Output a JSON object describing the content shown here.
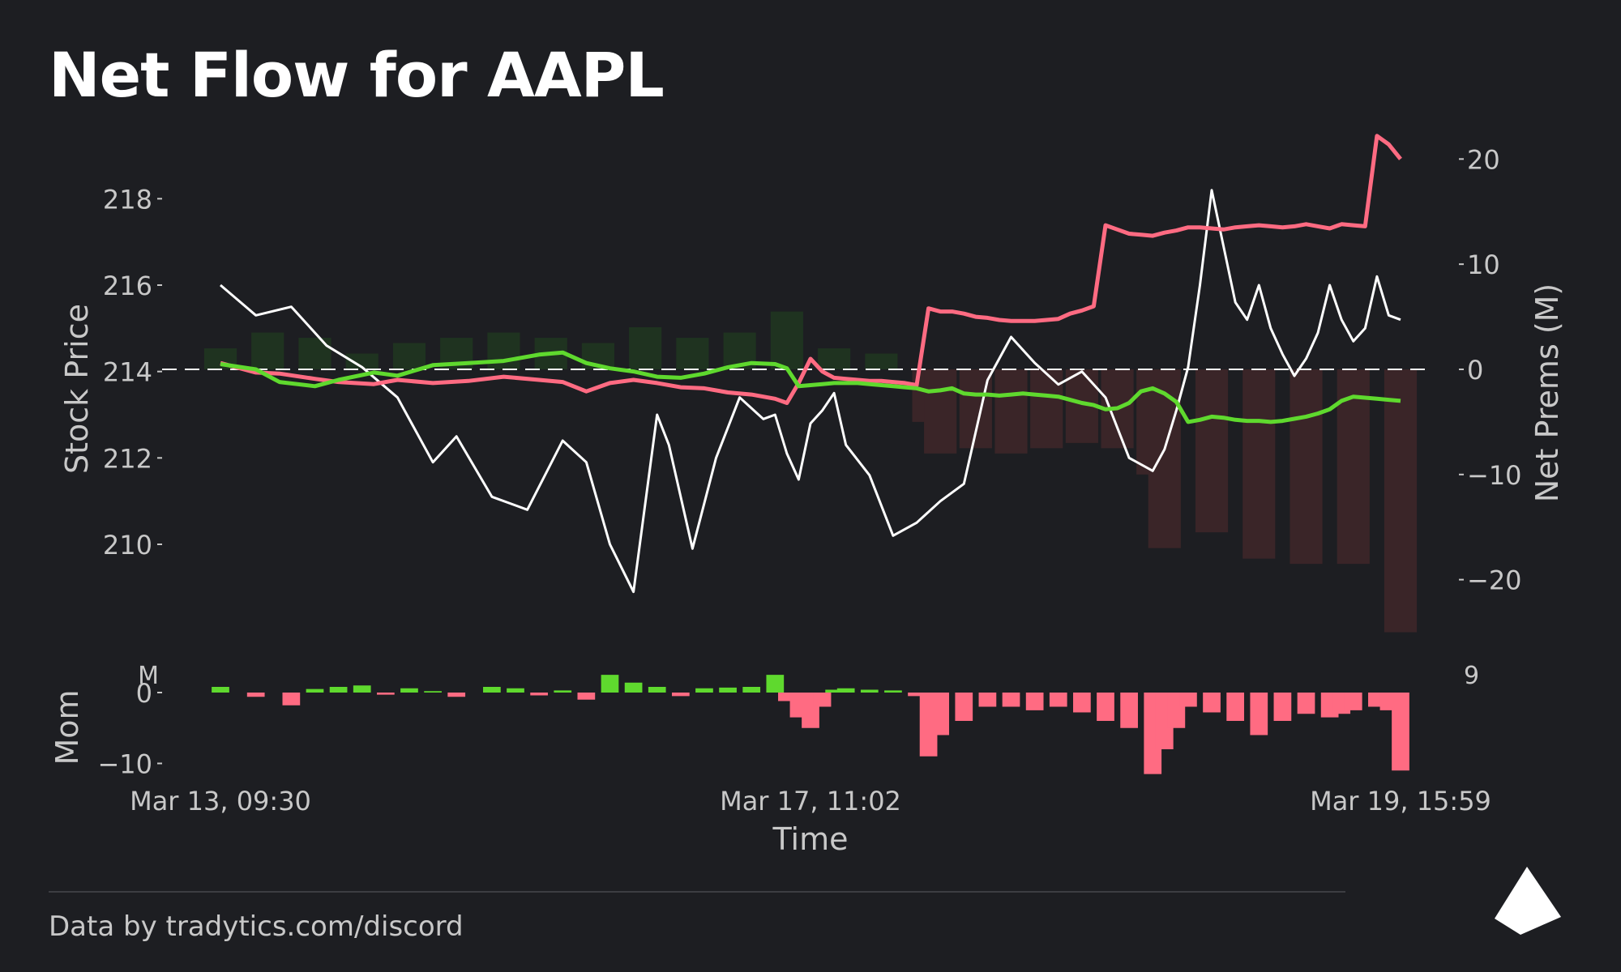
{
  "title": "Net Flow for AAPL",
  "footer": {
    "credit": "Data by tradytics.com/discord"
  },
  "colors": {
    "background": "#1d1e22",
    "price": "#ffffff",
    "calls": "#5fd92e",
    "puts": "#ff6b82",
    "net_bar_positive": "#1f3320",
    "net_bar_negative": "#3a2528",
    "mom_positive": "#5fd92e",
    "mom_negative": "#ff6b82",
    "axis_text": "#c8c8c8"
  },
  "chart_data": [
    {
      "type": "line",
      "panel": "main",
      "ylabel": "Stock Price",
      "y2label": "Net Prems (M)",
      "xlabel": "Time",
      "x_tick_labels": [
        "Mar 13, 09:30",
        "Mar 17, 11:02",
        "Mar 19, 15:59"
      ],
      "ylim": [
        207.6,
        219.6
      ],
      "y_ticks": [
        210,
        212,
        214,
        216,
        218
      ],
      "y2lim": [
        -26.5,
        22.8
      ],
      "y2_ticks": [
        -20,
        -10,
        0,
        10,
        20
      ],
      "y2_tick_labels": [
        "−20",
        "−10",
        "0",
        "10",
        "20"
      ],
      "zero_line": 0,
      "grid": false,
      "legend": "none",
      "series": [
        {
          "axis": "left",
          "color": "#ffffff",
          "x": [
            0,
            3,
            6,
            9,
            12,
            15,
            18,
            20,
            23,
            26,
            29,
            31,
            33,
            35,
            37,
            38,
            40,
            42,
            44,
            46,
            47,
            48,
            49,
            50,
            51,
            52,
            53,
            55,
            57,
            59,
            61,
            63,
            65,
            67,
            69,
            71,
            73,
            75,
            77,
            79,
            80,
            81,
            82,
            83,
            84,
            85,
            86,
            87,
            88,
            89,
            90,
            91,
            92,
            93,
            94,
            95,
            96,
            97,
            98,
            99,
            100
          ],
          "values": [
            216.0,
            215.3,
            215.5,
            214.6,
            214.1,
            213.4,
            211.9,
            212.5,
            211.1,
            210.8,
            212.4,
            211.9,
            210.0,
            208.9,
            213.0,
            212.3,
            209.9,
            212.0,
            213.4,
            212.9,
            213.0,
            212.1,
            211.5,
            212.8,
            213.1,
            213.5,
            212.3,
            211.6,
            210.2,
            210.5,
            211.0,
            211.4,
            213.8,
            214.8,
            214.2,
            213.7,
            214.0,
            213.4,
            212.0,
            211.7,
            212.2,
            213.1,
            214.1,
            216.0,
            218.2,
            216.9,
            215.6,
            215.2,
            216.0,
            215.0,
            214.4,
            213.9,
            214.3,
            214.9,
            216.0,
            215.2,
            214.7,
            215.0,
            216.2,
            215.3,
            215.2
          ]
        },
        {
          "axis": "right",
          "color": "#ff6b82",
          "x": [
            0,
            3,
            5,
            8,
            10,
            13,
            15,
            18,
            21,
            24,
            27,
            29,
            31,
            33,
            35,
            37,
            39,
            41,
            43,
            45,
            47,
            48,
            49,
            50,
            51,
            52,
            53,
            54,
            55,
            56,
            57,
            58,
            59,
            60,
            61,
            62,
            63,
            64,
            65,
            66,
            67,
            68,
            69,
            70,
            71,
            72,
            73,
            74,
            75,
            76,
            77,
            78,
            79,
            80,
            81,
            82,
            83,
            84,
            85,
            86,
            87,
            88,
            89,
            90,
            91,
            92,
            93,
            94,
            95,
            96,
            97,
            98,
            99,
            100
          ],
          "values": [
            0.6,
            -0.3,
            -0.4,
            -0.9,
            -1.2,
            -1.4,
            -1.0,
            -1.3,
            -1.1,
            -0.7,
            -1.0,
            -1.2,
            -2.1,
            -1.3,
            -1.0,
            -1.3,
            -1.7,
            -1.8,
            -2.2,
            -2.4,
            -2.8,
            -3.2,
            -1.3,
            1.0,
            -0.2,
            -0.8,
            -0.9,
            -1.0,
            -1.1,
            -1.1,
            -1.2,
            -1.3,
            -1.5,
            5.8,
            5.5,
            5.5,
            5.3,
            5.0,
            4.9,
            4.7,
            4.6,
            4.6,
            4.6,
            4.7,
            4.8,
            5.3,
            5.6,
            6.0,
            13.7,
            13.3,
            12.9,
            12.8,
            12.7,
            13.0,
            13.2,
            13.5,
            13.5,
            13.4,
            13.3,
            13.5,
            13.6,
            13.7,
            13.6,
            13.5,
            13.6,
            13.8,
            13.6,
            13.4,
            13.8,
            13.7,
            13.6,
            22.2,
            21.4,
            20.0
          ]
        },
        {
          "axis": "right",
          "color": "#5fd92e",
          "x": [
            0,
            3,
            5,
            8,
            10,
            13,
            15,
            18,
            21,
            24,
            27,
            29,
            31,
            33,
            35,
            37,
            39,
            41,
            43,
            45,
            47,
            48,
            49,
            50,
            51,
            52,
            53,
            54,
            55,
            56,
            57,
            58,
            59,
            60,
            61,
            62,
            63,
            64,
            65,
            66,
            67,
            68,
            69,
            70,
            71,
            72,
            73,
            74,
            75,
            76,
            77,
            78,
            79,
            80,
            81,
            82,
            83,
            84,
            85,
            86,
            87,
            88,
            89,
            90,
            91,
            92,
            93,
            94,
            95,
            96,
            97,
            98,
            99,
            100
          ],
          "values": [
            0.5,
            0.0,
            -1.2,
            -1.6,
            -1.0,
            -0.3,
            -0.6,
            0.4,
            0.6,
            0.8,
            1.4,
            1.6,
            0.6,
            0.1,
            -0.2,
            -0.7,
            -0.8,
            -0.4,
            0.2,
            0.6,
            0.5,
            0.1,
            -1.6,
            -1.5,
            -1.4,
            -1.3,
            -1.3,
            -1.3,
            -1.4,
            -1.5,
            -1.6,
            -1.7,
            -1.8,
            -2.1,
            -2.0,
            -1.8,
            -2.3,
            -2.4,
            -2.4,
            -2.5,
            -2.4,
            -2.3,
            -2.4,
            -2.5,
            -2.6,
            -2.9,
            -3.2,
            -3.4,
            -3.8,
            -3.7,
            -3.2,
            -2.1,
            -1.8,
            -2.3,
            -3.1,
            -5.0,
            -4.8,
            -4.5,
            -4.6,
            -4.8,
            -4.9,
            -4.9,
            -5.0,
            -4.9,
            -4.7,
            -4.5,
            -4.2,
            -3.8,
            -3.0,
            -2.6,
            -2.7,
            -2.8,
            -2.9,
            -3.0
          ]
        }
      ],
      "net_premium_bars": {
        "axis": "right",
        "x": [
          0,
          4,
          8,
          12,
          16,
          20,
          24,
          28,
          32,
          36,
          40,
          44,
          48,
          52,
          56,
          60,
          61,
          64,
          67,
          70,
          73,
          76,
          79,
          80,
          84,
          88,
          92,
          96,
          100
        ],
        "values": [
          2.0,
          3.5,
          3.0,
          1.5,
          2.5,
          3.0,
          3.5,
          3.0,
          2.5,
          4.0,
          3.0,
          3.5,
          5.5,
          2.0,
          1.5,
          -5.0,
          -8.0,
          -7.5,
          -8.0,
          -7.5,
          -7.0,
          -7.5,
          -10.0,
          -17.0,
          -15.5,
          -18.0,
          -18.5,
          -18.5,
          -25.0
        ]
      }
    },
    {
      "type": "area",
      "panel": "momentum",
      "ylabel": "Mom",
      "y_ticks": [
        0,
        -10
      ],
      "y_tick_labels": [
        "0",
        "−10"
      ],
      "ylim": [
        -12,
        4
      ],
      "cut_top_left": "M",
      "cut_top_right": "9",
      "x": [
        0,
        3,
        6,
        8,
        10,
        12,
        14,
        16,
        18,
        20,
        23,
        25,
        27,
        29,
        31,
        33,
        35,
        37,
        39,
        41,
        43,
        45,
        47,
        48,
        49,
        50,
        51,
        52,
        53,
        55,
        57,
        59,
        60,
        61,
        63,
        65,
        67,
        69,
        71,
        73,
        75,
        77,
        79,
        80,
        81,
        82,
        84,
        86,
        88,
        90,
        92,
        94,
        95,
        96,
        98,
        99,
        100
      ],
      "values": [
        0.8,
        -0.6,
        -1.8,
        0.5,
        0.8,
        1.0,
        -0.3,
        0.6,
        0.2,
        -0.6,
        0.8,
        0.6,
        -0.4,
        0.3,
        -1.0,
        2.5,
        1.4,
        0.8,
        -0.5,
        0.6,
        0.7,
        0.8,
        2.5,
        -1.2,
        -3.5,
        -5.0,
        -2.0,
        0.4,
        0.6,
        0.4,
        0.3,
        -0.5,
        -9.0,
        -6.0,
        -4.0,
        -2.0,
        -2.0,
        -2.5,
        -2.0,
        -2.8,
        -4.0,
        -5.0,
        -11.5,
        -8.0,
        -5.0,
        -2.0,
        -2.8,
        -4.0,
        -6.0,
        -4.0,
        -3.0,
        -3.5,
        -3.0,
        -2.5,
        -2.0,
        -2.5,
        -11.0
      ]
    }
  ]
}
